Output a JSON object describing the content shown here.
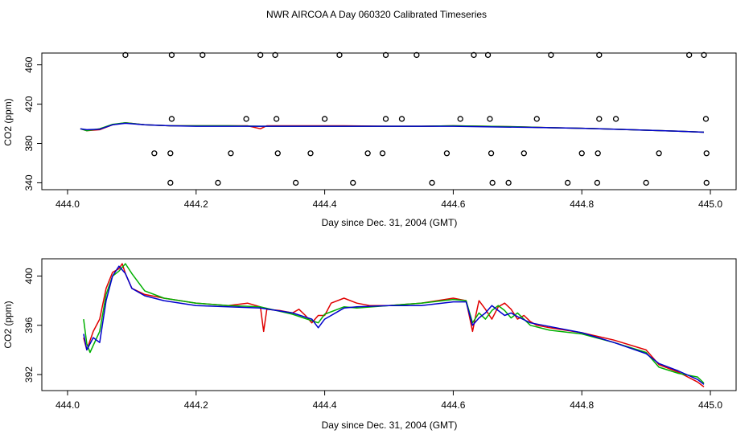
{
  "title": "NWR AIRCOA A  Day 060320  Calibrated Timeseries",
  "colors": {
    "series1": "#e00000",
    "series2": "#00b000",
    "series3": "#0000cc",
    "axis": "#000000"
  },
  "chart_data": [
    {
      "type": "line",
      "title": "",
      "xlabel": "Day since Dec. 31, 2004 (GMT)",
      "ylabel": "CO2 (ppm)",
      "xlim": [
        443.96,
        445.04
      ],
      "ylim": [
        333,
        472
      ],
      "xticks": [
        444.0,
        444.2,
        444.4,
        444.6,
        444.8,
        445.0
      ],
      "xtick_labels": [
        "444.0",
        "444.2",
        "444.4",
        "444.6",
        "444.8",
        "445.0"
      ],
      "yticks": [
        340,
        380,
        420,
        460
      ],
      "ytick_labels": [
        "340",
        "380",
        "420",
        "460"
      ],
      "series": [
        {
          "name": "red",
          "color": "#e00000",
          "x": [
            444.02,
            444.03,
            444.05,
            444.07,
            444.09,
            444.12,
            444.16,
            444.2,
            444.25,
            444.28,
            444.3,
            444.31,
            444.35,
            444.4,
            444.43,
            444.5,
            444.55,
            444.6,
            444.65,
            444.7,
            444.75,
            444.8,
            444.85,
            444.9,
            444.95,
            444.99
          ],
          "y": [
            395,
            393,
            394,
            399,
            401,
            399,
            398,
            398,
            398,
            398,
            395,
            398,
            398,
            398,
            398,
            397.5,
            397.5,
            398,
            397.5,
            397,
            396,
            395.5,
            394.5,
            393.5,
            392.5,
            391.5
          ]
        },
        {
          "name": "green",
          "color": "#00b000",
          "x": [
            444.02,
            444.03,
            444.05,
            444.07,
            444.09,
            444.12,
            444.16,
            444.2,
            444.25,
            444.3,
            444.35,
            444.4,
            444.5,
            444.55,
            444.6,
            444.65,
            444.7,
            444.75,
            444.8,
            444.85,
            444.9,
            444.95,
            444.99
          ],
          "y": [
            395,
            393,
            395,
            399.5,
            401,
            399,
            398,
            398,
            398,
            397.5,
            397.5,
            397.5,
            397.5,
            397.5,
            398,
            397.5,
            397,
            396,
            395.5,
            394.5,
            393.5,
            392.5,
            391.5
          ]
        },
        {
          "name": "blue",
          "color": "#0000cc",
          "x": [
            444.02,
            444.03,
            444.05,
            444.07,
            444.09,
            444.12,
            444.16,
            444.2,
            444.25,
            444.3,
            444.35,
            444.4,
            444.5,
            444.55,
            444.6,
            444.65,
            444.7,
            444.75,
            444.8,
            444.85,
            444.9,
            444.95,
            444.99
          ],
          "y": [
            395,
            394,
            394.5,
            399,
            400.5,
            399,
            398,
            397.5,
            397.5,
            397.5,
            397.5,
            397.5,
            397.5,
            397.5,
            397.5,
            397,
            396.5,
            396,
            395.5,
            394.5,
            393.5,
            392.5,
            391.5
          ]
        }
      ],
      "markers": {
        "shape": "open-circle",
        "points": [
          [
            444.09,
            470
          ],
          [
            444.162,
            470
          ],
          [
            444.21,
            470
          ],
          [
            444.3,
            470
          ],
          [
            444.323,
            470
          ],
          [
            444.423,
            470
          ],
          [
            444.495,
            470
          ],
          [
            444.543,
            470
          ],
          [
            444.632,
            470
          ],
          [
            444.654,
            470
          ],
          [
            444.752,
            470
          ],
          [
            444.827,
            470
          ],
          [
            444.967,
            470
          ],
          [
            444.99,
            470
          ],
          [
            444.162,
            405
          ],
          [
            444.278,
            405
          ],
          [
            444.325,
            405
          ],
          [
            444.4,
            405
          ],
          [
            444.495,
            405
          ],
          [
            444.52,
            405
          ],
          [
            444.611,
            405
          ],
          [
            444.657,
            405
          ],
          [
            444.73,
            405
          ],
          [
            444.827,
            405
          ],
          [
            444.853,
            405
          ],
          [
            444.993,
            405
          ],
          [
            444.135,
            370
          ],
          [
            444.16,
            370
          ],
          [
            444.254,
            370
          ],
          [
            444.327,
            370
          ],
          [
            444.378,
            370
          ],
          [
            444.467,
            370
          ],
          [
            444.49,
            370
          ],
          [
            444.59,
            370
          ],
          [
            444.659,
            370
          ],
          [
            444.71,
            370
          ],
          [
            444.8,
            370
          ],
          [
            444.825,
            370
          ],
          [
            444.92,
            370
          ],
          [
            444.994,
            370
          ],
          [
            444.16,
            340
          ],
          [
            444.234,
            340
          ],
          [
            444.355,
            340
          ],
          [
            444.444,
            340
          ],
          [
            444.567,
            340
          ],
          [
            444.661,
            340
          ],
          [
            444.686,
            340
          ],
          [
            444.778,
            340
          ],
          [
            444.824,
            340
          ],
          [
            444.9,
            340
          ],
          [
            444.994,
            340
          ]
        ]
      }
    },
    {
      "type": "line",
      "title": "",
      "xlabel": "Day since Dec. 31, 2004 (GMT)",
      "ylabel": "CO2 (ppm)",
      "xlim": [
        443.96,
        445.04
      ],
      "ylim": [
        390.7,
        401.4
      ],
      "xticks": [
        444.0,
        444.2,
        444.4,
        444.6,
        444.8,
        445.0
      ],
      "xtick_labels": [
        "444.0",
        "444.2",
        "444.4",
        "444.6",
        "444.8",
        "445.0"
      ],
      "yticks": [
        392,
        396,
        400
      ],
      "ytick_labels": [
        "392",
        "396",
        "400"
      ],
      "series": [
        {
          "name": "red",
          "color": "#e00000",
          "x": [
            444.025,
            444.03,
            444.04,
            444.05,
            444.06,
            444.07,
            444.08,
            444.085,
            444.09,
            444.1,
            444.12,
            444.15,
            444.2,
            444.25,
            444.28,
            444.3,
            444.305,
            444.31,
            444.33,
            444.35,
            444.36,
            444.37,
            444.38,
            444.39,
            444.4,
            444.41,
            444.43,
            444.45,
            444.47,
            444.5,
            444.55,
            444.6,
            444.62,
            444.63,
            444.635,
            444.64,
            444.65,
            444.66,
            444.67,
            444.68,
            444.69,
            444.7,
            444.71,
            444.72,
            444.73,
            444.75,
            444.8,
            444.85,
            444.9,
            444.92,
            444.95,
            444.98,
            444.99
          ],
          "y": [
            395,
            394,
            395.5,
            396.5,
            399,
            400.3,
            400.6,
            401,
            400.2,
            399,
            398.5,
            398.2,
            397.8,
            397.6,
            397.8,
            397.5,
            395.5,
            397.3,
            397.2,
            397,
            397.3,
            396.8,
            396.2,
            396.8,
            396.8,
            397.8,
            398.2,
            397.8,
            397.6,
            397.6,
            397.8,
            398.2,
            398,
            395.5,
            396.8,
            398,
            397.3,
            396.5,
            397.5,
            397.8,
            397.3,
            396.5,
            396.8,
            396.3,
            396,
            395.8,
            395.4,
            394.8,
            394,
            392.8,
            392.2,
            391.4,
            391
          ]
        },
        {
          "name": "green",
          "color": "#00b000",
          "x": [
            444.025,
            444.03,
            444.035,
            444.05,
            444.06,
            444.07,
            444.08,
            444.09,
            444.1,
            444.12,
            444.15,
            444.2,
            444.25,
            444.3,
            444.35,
            444.39,
            444.4,
            444.43,
            444.45,
            444.5,
            444.55,
            444.6,
            444.62,
            444.63,
            444.64,
            444.65,
            444.66,
            444.67,
            444.68,
            444.69,
            444.7,
            444.72,
            444.75,
            444.8,
            444.85,
            444.9,
            444.92,
            444.95,
            444.98,
            444.99
          ],
          "y": [
            396.5,
            394.5,
            393.8,
            395.5,
            398.5,
            400,
            400.4,
            401,
            400.2,
            398.8,
            398.2,
            397.8,
            397.6,
            397.5,
            396.9,
            396.2,
            396.9,
            397.5,
            397.4,
            397.6,
            397.8,
            398.1,
            398,
            396.2,
            397,
            396.5,
            397.2,
            397.6,
            397.2,
            396.6,
            397,
            396,
            395.6,
            395.3,
            394.6,
            393.8,
            392.6,
            392.1,
            391.8,
            391.3
          ]
        },
        {
          "name": "blue",
          "color": "#0000cc",
          "x": [
            444.025,
            444.03,
            444.04,
            444.05,
            444.06,
            444.07,
            444.08,
            444.085,
            444.09,
            444.1,
            444.12,
            444.15,
            444.2,
            444.25,
            444.3,
            444.35,
            444.38,
            444.39,
            444.4,
            444.43,
            444.45,
            444.5,
            444.55,
            444.6,
            444.62,
            444.63,
            444.64,
            444.65,
            444.66,
            444.67,
            444.68,
            444.69,
            444.7,
            444.72,
            444.75,
            444.8,
            444.85,
            444.9,
            444.92,
            444.95,
            444.98,
            444.99
          ],
          "y": [
            395.3,
            394,
            395,
            394.6,
            398,
            400,
            400.8,
            400.5,
            400.2,
            399,
            398.4,
            398,
            397.6,
            397.5,
            397.4,
            397,
            396.5,
            395.8,
            396.5,
            397.4,
            397.5,
            397.6,
            397.6,
            397.9,
            397.9,
            396,
            396.6,
            397,
            397.6,
            397.2,
            396.8,
            397,
            396.7,
            396.2,
            395.9,
            395.4,
            394.6,
            393.7,
            392.9,
            392.3,
            391.6,
            391.2
          ]
        }
      ]
    }
  ]
}
